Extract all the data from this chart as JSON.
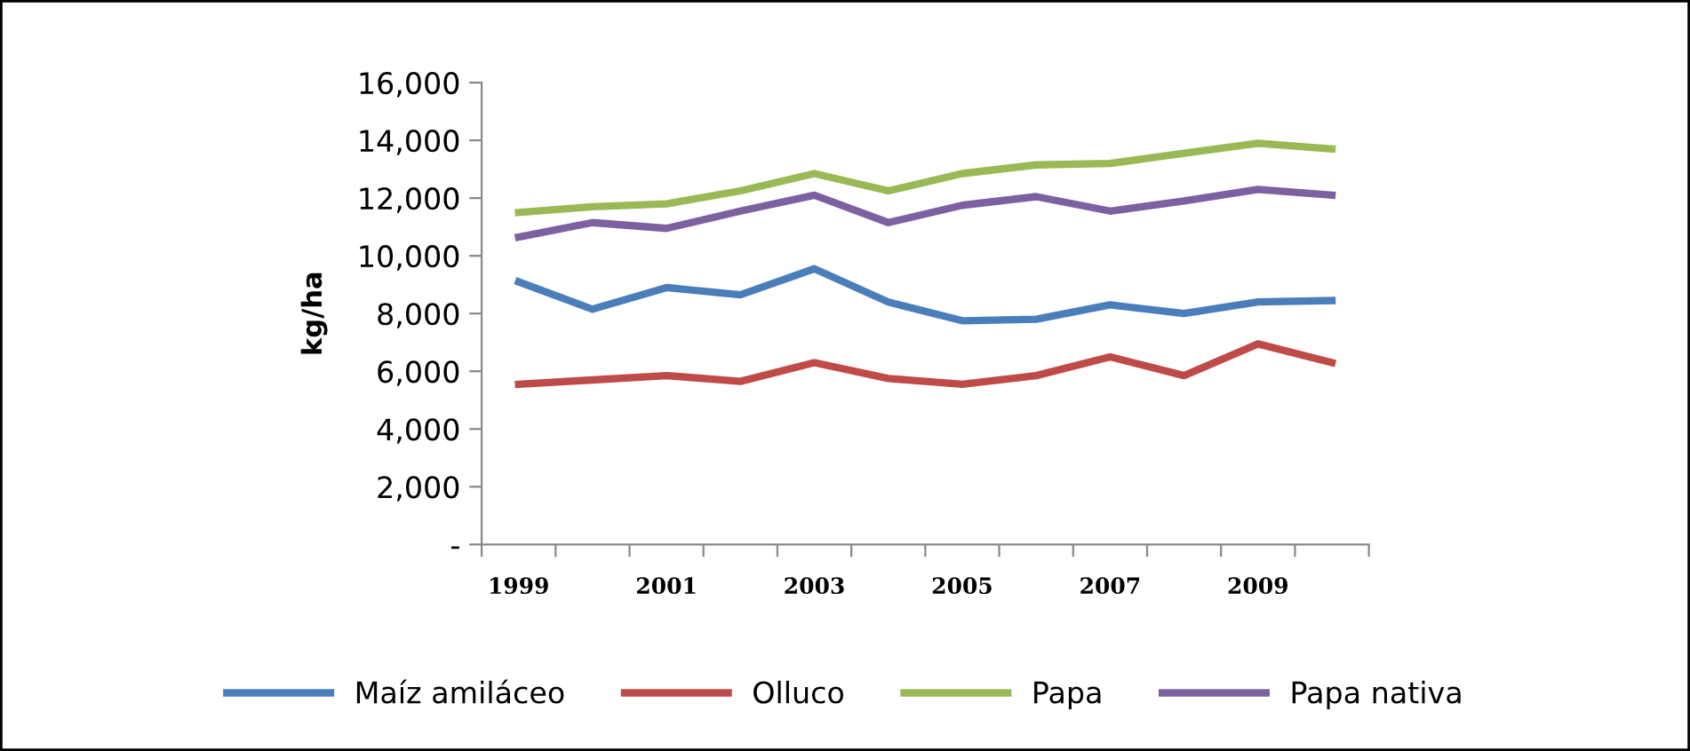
{
  "chart_data": {
    "type": "line",
    "ylabel": "kg/ha",
    "categories": [
      "1999",
      null,
      "2001",
      null,
      "2003",
      null,
      "2005",
      null,
      "2007",
      null,
      "2009",
      null
    ],
    "series": [
      {
        "name": "Maíz amiláceo",
        "color": "#4a7ebb",
        "values": [
          9100,
          8150,
          8900,
          8650,
          9550,
          8400,
          7750,
          7800,
          8300,
          8000,
          8400,
          8450
        ]
      },
      {
        "name": "Olluco",
        "color": "#be4b48",
        "values": [
          5550,
          5700,
          5850,
          5650,
          6300,
          5750,
          5550,
          5850,
          6500,
          5850,
          6950,
          6300
        ]
      },
      {
        "name": "Papa",
        "color": "#98b954",
        "values": [
          11500,
          11700,
          11800,
          12250,
          12850,
          12250,
          12850,
          13150,
          13200,
          13550,
          13900,
          13700
        ]
      },
      {
        "name": "Papa nativa",
        "color": "#7d60a0",
        "values": [
          10650,
          11150,
          10950,
          11550,
          12100,
          11150,
          11750,
          12050,
          11550,
          11900,
          12300,
          12100
        ]
      }
    ],
    "ylim": [
      0,
      16000
    ],
    "yticks": [
      {
        "value": 0,
        "label": "-"
      },
      {
        "value": 2000,
        "label": "2,000"
      },
      {
        "value": 4000,
        "label": "4,000"
      },
      {
        "value": 6000,
        "label": "6,000"
      },
      {
        "value": 8000,
        "label": "8,000"
      },
      {
        "value": 10000,
        "label": "10,000"
      },
      {
        "value": 12000,
        "label": "12,000"
      },
      {
        "value": 14000,
        "label": "14,000"
      },
      {
        "value": 16000,
        "label": "16,000"
      }
    ],
    "grid": false,
    "legend": "bottom",
    "marker": "none",
    "line_style": "solid"
  }
}
